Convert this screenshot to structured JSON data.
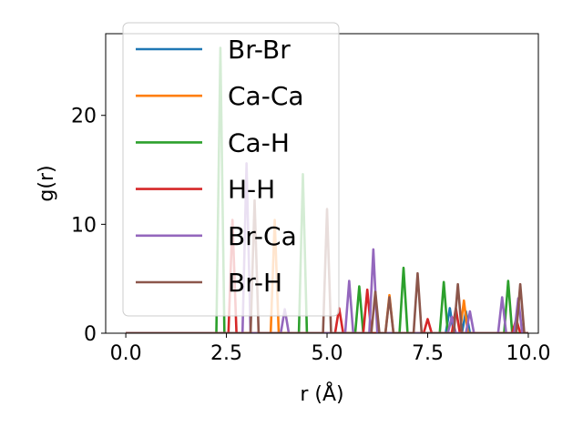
{
  "chart_data": {
    "type": "line",
    "xlabel": "r (Å)",
    "ylabel": "g(r)",
    "xlim": [
      -0.5,
      10.25
    ],
    "ylim": [
      0,
      27.5
    ],
    "xticks": [
      0.0,
      2.5,
      5.0,
      7.5,
      10.0
    ],
    "xtick_labels": [
      "0.0",
      "2.5",
      "5.0",
      "7.5",
      "10.0"
    ],
    "yticks": [
      0,
      10,
      20
    ],
    "ytick_labels": [
      "0",
      "10",
      "20"
    ],
    "grid": false,
    "legend_position": "top-left",
    "series": [
      {
        "name": "Br-Br",
        "color": "#1f77b4",
        "peaks": [
          [
            8.05,
            2.3
          ],
          [
            8.45,
            2.0
          ]
        ]
      },
      {
        "name": "Ca-Ca",
        "color": "#ff7f0e",
        "peaks": [
          [
            3.7,
            10.4
          ],
          [
            6.55,
            3.5
          ],
          [
            8.4,
            3.0
          ]
        ]
      },
      {
        "name": "Ca-H",
        "color": "#2ca02c",
        "peaks": [
          [
            2.35,
            26.2
          ],
          [
            4.4,
            14.6
          ],
          [
            5.8,
            4.3
          ],
          [
            6.9,
            6.0
          ],
          [
            7.9,
            4.7
          ],
          [
            9.5,
            4.8
          ]
        ]
      },
      {
        "name": "H-H",
        "color": "#d62728",
        "peaks": [
          [
            2.65,
            10.4
          ],
          [
            5.3,
            2.3
          ],
          [
            6.0,
            4.0
          ],
          [
            7.5,
            1.3
          ],
          [
            8.2,
            2.3
          ],
          [
            9.7,
            1.3
          ]
        ]
      },
      {
        "name": "Br-Ca",
        "color": "#9467bd",
        "peaks": [
          [
            3.0,
            15.6
          ],
          [
            3.95,
            2.2
          ],
          [
            5.55,
            4.8
          ],
          [
            6.15,
            7.7
          ],
          [
            8.1,
            1.5
          ],
          [
            8.55,
            2.0
          ],
          [
            9.35,
            3.3
          ],
          [
            9.75,
            3.2
          ]
        ]
      },
      {
        "name": "Br-H",
        "color": "#8c564b",
        "peaks": [
          [
            3.2,
            12.2
          ],
          [
            5.0,
            11.4
          ],
          [
            6.2,
            3.8
          ],
          [
            6.55,
            3.3
          ],
          [
            7.25,
            5.5
          ],
          [
            8.25,
            4.5
          ],
          [
            9.8,
            4.5
          ]
        ]
      }
    ]
  }
}
